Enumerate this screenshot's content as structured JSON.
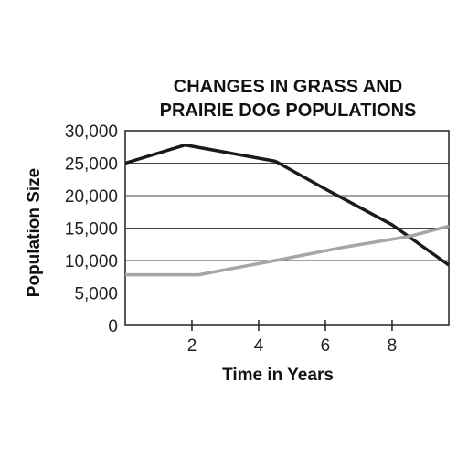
{
  "chart_data": {
    "type": "line",
    "title_lines": [
      "CHANGES IN GRASS AND",
      "PRAIRIE DOG POPULATIONS"
    ],
    "xlabel": "Time in Years",
    "ylabel": "Population Size",
    "xlim": [
      0,
      9.7
    ],
    "ylim": [
      0,
      30000
    ],
    "x_ticks": [
      2,
      4,
      6,
      8
    ],
    "x_tick_labels": [
      "2",
      "4",
      "6",
      "8"
    ],
    "y_ticks": [
      0,
      5000,
      10000,
      15000,
      20000,
      25000,
      30000
    ],
    "y_tick_labels": [
      "0",
      "5,000",
      "10,000",
      "15,000",
      "20,000",
      "25,000",
      "30,000"
    ],
    "grid": "horizontal",
    "series": [
      {
        "color": "#1a1a1a",
        "points": [
          [
            0,
            25000
          ],
          [
            1.8,
            27800
          ],
          [
            4.5,
            25300
          ],
          [
            6,
            21000
          ],
          [
            8,
            15500
          ],
          [
            9.7,
            9300
          ]
        ]
      },
      {
        "color": "#a6a6a6",
        "points": [
          [
            0,
            7800
          ],
          [
            2.2,
            7800
          ],
          [
            4.5,
            10000
          ],
          [
            6.5,
            12000
          ],
          [
            8.5,
            13700
          ],
          [
            9.7,
            15300
          ]
        ]
      }
    ]
  }
}
